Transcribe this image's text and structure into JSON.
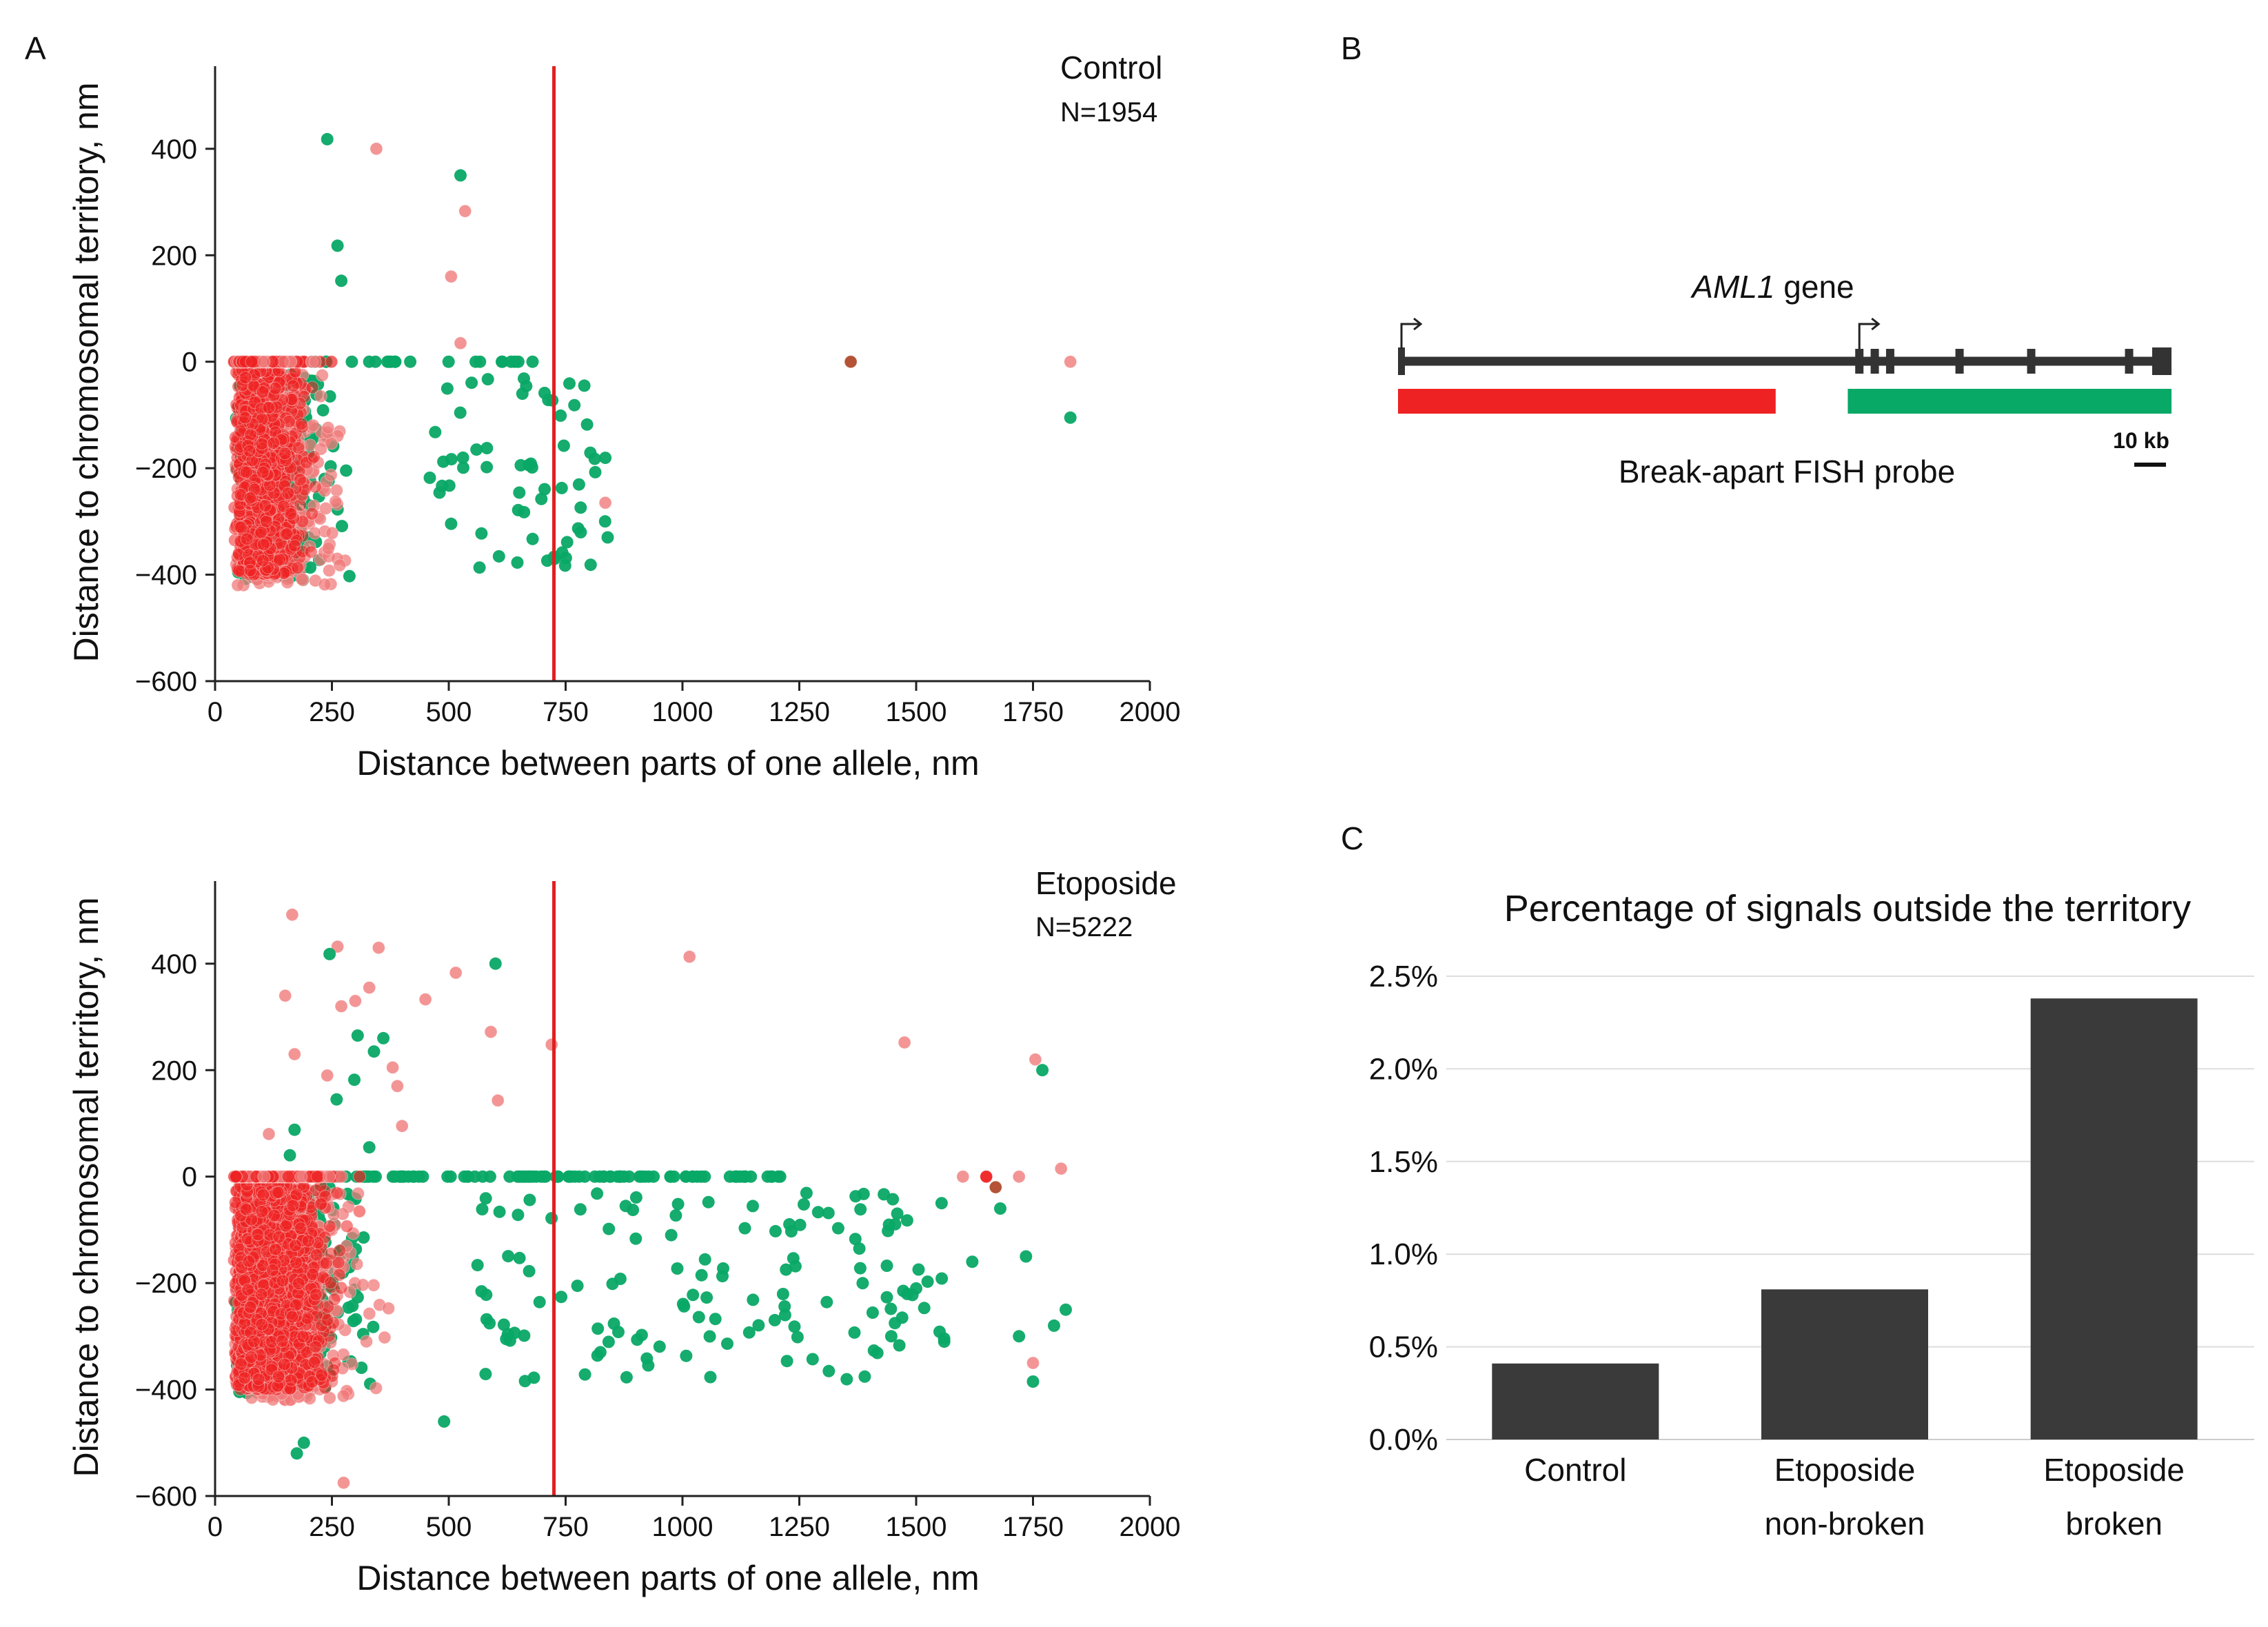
{
  "panel_labels": {
    "a": "A",
    "b": "B",
    "c": "C"
  },
  "colors": {
    "red": "#ee2222",
    "pink": "#f07a7a",
    "green": "#08a866",
    "brown": "#b04a2a",
    "gene": "#333333",
    "bar": "#3a3a3a",
    "threshold": "#e02020",
    "grid": "#dddddd"
  },
  "gene_diagram": {
    "gene_name": "AML1",
    "gene_suffix": " gene",
    "probe_label": "Break-apart FISH probe",
    "scale_label": "10 kb",
    "red_probe_span": [
      0.0,
      0.49
    ],
    "green_probe_span": [
      0.58,
      1.0
    ],
    "tss_positions": [
      0.0,
      0.595
    ],
    "exon_positions": [
      0.595,
      0.615,
      0.635,
      0.725,
      0.818,
      0.945
    ]
  },
  "chart_data": [
    {
      "type": "scatter",
      "title": "Control",
      "subtitle": "N=1954",
      "xlabel": "Distance between parts of one allele, nm",
      "ylabel": "Distance to chromosomal territory, nm",
      "xlim": [
        0,
        2000
      ],
      "ylim": [
        -600,
        550
      ],
      "xticks": [
        0,
        250,
        500,
        750,
        1000,
        1250,
        1500,
        1750,
        2000
      ],
      "yticks": [
        -600,
        -400,
        -200,
        0,
        200,
        400
      ],
      "threshold_x": 725,
      "outliers": [
        {
          "x": 240,
          "y": 418,
          "c": "green"
        },
        {
          "x": 345,
          "y": 400,
          "c": "pink"
        },
        {
          "x": 262,
          "y": 218,
          "c": "green"
        },
        {
          "x": 270,
          "y": 152,
          "c": "green"
        },
        {
          "x": 525,
          "y": 350,
          "c": "green"
        },
        {
          "x": 535,
          "y": 283,
          "c": "pink"
        },
        {
          "x": 505,
          "y": 160,
          "c": "pink"
        },
        {
          "x": 525,
          "y": 35,
          "c": "pink"
        },
        {
          "x": 1360,
          "y": 0,
          "c": "brown"
        },
        {
          "x": 1830,
          "y": 0,
          "c": "pink"
        },
        {
          "x": 1830,
          "y": -105,
          "c": "green"
        },
        {
          "x": 840,
          "y": -330,
          "c": "green"
        },
        {
          "x": 835,
          "y": -265,
          "c": "pink"
        },
        {
          "x": 790,
          "y": -45,
          "c": "green"
        }
      ],
      "bulk": {
        "seed": 11,
        "zero_red": 190,
        "zero_green": 30,
        "neg_red": 1050,
        "neg_pink": 450,
        "neg_green": 360,
        "neg_green_tail": 60,
        "tail_xmax": 840,
        "core_xmax": 570
      }
    },
    {
      "type": "scatter",
      "title": "Etoposide",
      "subtitle": "N=5222",
      "xlabel": "Distance between parts of one allele, nm",
      "ylabel": "Distance to chromosomal territory, nm",
      "xlim": [
        0,
        2000
      ],
      "ylim": [
        -600,
        550
      ],
      "xticks": [
        0,
        250,
        500,
        750,
        1000,
        1250,
        1500,
        1750,
        2000
      ],
      "yticks": [
        -600,
        -400,
        -200,
        0,
        200,
        400
      ],
      "threshold_x": 725,
      "outliers": [
        {
          "x": 165,
          "y": 492,
          "c": "pink"
        },
        {
          "x": 262,
          "y": 432,
          "c": "pink"
        },
        {
          "x": 350,
          "y": 430,
          "c": "pink"
        },
        {
          "x": 245,
          "y": 418,
          "c": "green"
        },
        {
          "x": 1015,
          "y": 413,
          "c": "pink"
        },
        {
          "x": 600,
          "y": 400,
          "c": "green"
        },
        {
          "x": 515,
          "y": 383,
          "c": "pink"
        },
        {
          "x": 330,
          "y": 355,
          "c": "pink"
        },
        {
          "x": 150,
          "y": 340,
          "c": "pink"
        },
        {
          "x": 450,
          "y": 333,
          "c": "pink"
        },
        {
          "x": 270,
          "y": 320,
          "c": "pink"
        },
        {
          "x": 300,
          "y": 330,
          "c": "pink"
        },
        {
          "x": 590,
          "y": 272,
          "c": "pink"
        },
        {
          "x": 305,
          "y": 265,
          "c": "green"
        },
        {
          "x": 360,
          "y": 260,
          "c": "green"
        },
        {
          "x": 1475,
          "y": 252,
          "c": "pink"
        },
        {
          "x": 720,
          "y": 248,
          "c": "pink"
        },
        {
          "x": 170,
          "y": 230,
          "c": "pink"
        },
        {
          "x": 340,
          "y": 235,
          "c": "green"
        },
        {
          "x": 1755,
          "y": 220,
          "c": "pink"
        },
        {
          "x": 1770,
          "y": 200,
          "c": "green"
        },
        {
          "x": 380,
          "y": 205,
          "c": "pink"
        },
        {
          "x": 240,
          "y": 190,
          "c": "pink"
        },
        {
          "x": 298,
          "y": 182,
          "c": "green"
        },
        {
          "x": 390,
          "y": 170,
          "c": "pink"
        },
        {
          "x": 605,
          "y": 143,
          "c": "pink"
        },
        {
          "x": 260,
          "y": 145,
          "c": "green"
        },
        {
          "x": 400,
          "y": 95,
          "c": "pink"
        },
        {
          "x": 170,
          "y": 88,
          "c": "green"
        },
        {
          "x": 115,
          "y": 80,
          "c": "pink"
        },
        {
          "x": 160,
          "y": 40,
          "c": "green"
        },
        {
          "x": 330,
          "y": 55,
          "c": "green"
        },
        {
          "x": 175,
          "y": -520,
          "c": "green"
        },
        {
          "x": 190,
          "y": -500,
          "c": "green"
        },
        {
          "x": 275,
          "y": -575,
          "c": "pink"
        },
        {
          "x": 490,
          "y": -460,
          "c": "green"
        },
        {
          "x": 1650,
          "y": 0,
          "c": "red"
        },
        {
          "x": 1600,
          "y": 0,
          "c": "pink"
        },
        {
          "x": 1720,
          "y": 0,
          "c": "pink"
        },
        {
          "x": 1810,
          "y": 15,
          "c": "pink"
        },
        {
          "x": 1670,
          "y": -20,
          "c": "brown"
        },
        {
          "x": 1735,
          "y": -150,
          "c": "green"
        },
        {
          "x": 1750,
          "y": -385,
          "c": "green"
        },
        {
          "x": 1750,
          "y": -350,
          "c": "pink"
        },
        {
          "x": 1820,
          "y": -250,
          "c": "green"
        },
        {
          "x": 1795,
          "y": -280,
          "c": "green"
        },
        {
          "x": 1720,
          "y": -300,
          "c": "green"
        },
        {
          "x": 1680,
          "y": -60,
          "c": "green"
        },
        {
          "x": 1620,
          "y": -160,
          "c": "green"
        },
        {
          "x": 1560,
          "y": -310,
          "c": "green"
        },
        {
          "x": 1500,
          "y": -210,
          "c": "green"
        },
        {
          "x": 1470,
          "y": -265,
          "c": "green"
        }
      ],
      "bulk": {
        "seed": 23,
        "zero_red": 380,
        "zero_green": 110,
        "neg_red": 2900,
        "neg_pink": 700,
        "neg_green": 700,
        "neg_green_tail": 130,
        "tail_xmax": 1560,
        "core_xmax": 700
      }
    },
    {
      "type": "bar",
      "title": "Percentage of signals outside the territory",
      "categories": [
        [
          "Control"
        ],
        [
          "Etoposide",
          "non-broken"
        ],
        [
          "Etoposide",
          "broken"
        ]
      ],
      "values": [
        0.41,
        0.81,
        2.38
      ],
      "yticks": [
        "0.0%",
        "0.5%",
        "1.0%",
        "1.5%",
        "2.0%",
        "2.5%"
      ],
      "ylim": [
        0,
        2.5
      ]
    }
  ]
}
